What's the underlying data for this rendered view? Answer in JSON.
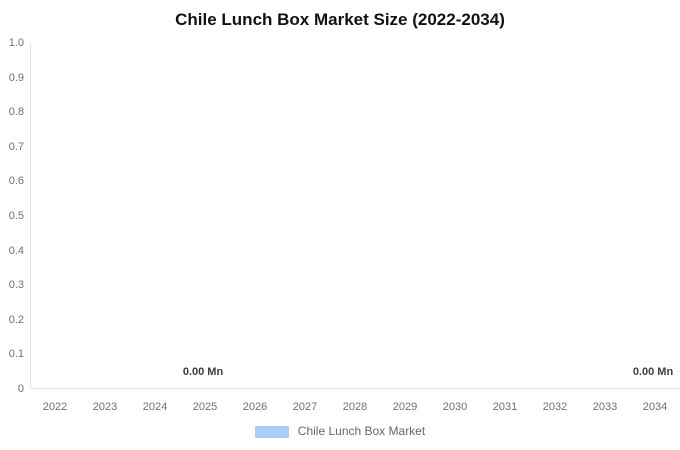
{
  "chart_data": {
    "type": "bar",
    "title": "Chile Lunch Box Market Size (2022-2034)",
    "categories": [
      "2022",
      "2023",
      "2024",
      "2025",
      "2026",
      "2027",
      "2028",
      "2029",
      "2030",
      "2031",
      "2032",
      "2033",
      "2034"
    ],
    "series": [
      {
        "name": "Chile Lunch Box Market",
        "values": [
          0,
          0,
          0,
          0,
          0,
          0,
          0,
          0,
          0,
          0,
          0,
          0,
          0
        ],
        "color": "#A9CEF5"
      }
    ],
    "unit": "Mn",
    "xlabel": "",
    "ylabel": "",
    "ylim": [
      0,
      1.0
    ],
    "yticks": [
      "1.0",
      "0.9",
      "0.8",
      "0.7",
      "0.6",
      "0.5",
      "0.4",
      "0.3",
      "0.2",
      "0.1",
      "0"
    ],
    "grid": false,
    "legend_position": "bottom",
    "legend": [
      {
        "label": "Chile Lunch Box Market",
        "color": "#A9CEF5"
      }
    ],
    "data_labels": [
      {
        "category": "2025",
        "text": "0.00 Mn"
      },
      {
        "category": "2034",
        "text": "0.00 Mn"
      }
    ],
    "colors": {
      "title": "#111111",
      "axis_line": "#e4e4e4",
      "tick_label": "#6f6f6f",
      "data_label": "#3d3d3d",
      "legend_label": "#666666",
      "series": "#A9CEF5",
      "background": "#ffffff"
    }
  }
}
